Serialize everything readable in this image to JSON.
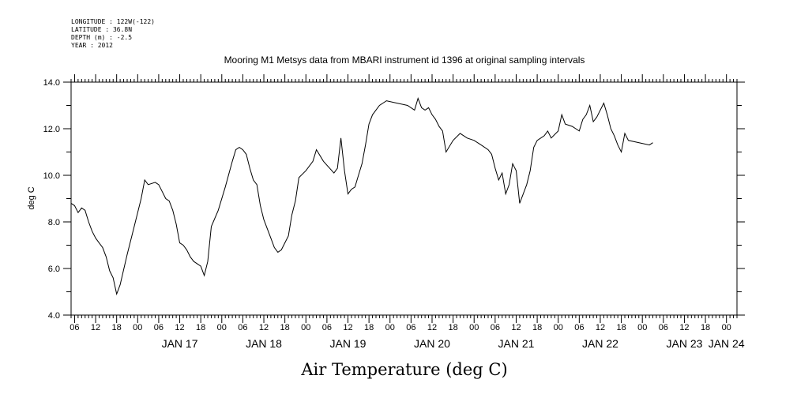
{
  "header": {
    "meta_lines": [
      "LONGITUDE : 122W(-122)",
      "LATITUDE : 36.8N",
      "DEPTH (m) : -2.5",
      "YEAR : 2012"
    ],
    "title": "Mooring M1 Metsys data from MBARI instrument id 1396 at original sampling intervals"
  },
  "footer": {
    "variable_title": "Air Temperature (deg C)"
  },
  "chart_data": {
    "type": "line",
    "title": "Mooring M1 Metsys data from MBARI instrument id 1396 at original sampling intervals",
    "xlabel": "Air Temperature (deg C)",
    "ylabel": "deg C",
    "xlim": [
      "2012-01-16T05:00",
      "2012-01-24T03:00"
    ],
    "ylim": [
      4.0,
      14.0
    ],
    "y_ticks": [
      "4.0",
      "6.0",
      "8.0",
      "10.0",
      "12.0",
      "14.0"
    ],
    "x_hour_ticks": [
      "06",
      "12",
      "18",
      "00",
      "06",
      "12",
      "18",
      "00",
      "06",
      "12",
      "18",
      "00",
      "06",
      "12",
      "18",
      "00",
      "06",
      "12",
      "18",
      "00",
      "06",
      "12",
      "18",
      "00",
      "06",
      "12",
      "18",
      "00",
      "06",
      "12",
      "18",
      "00"
    ],
    "x_date_labels": [
      "JAN 17",
      "JAN 18",
      "JAN 19",
      "JAN 20",
      "JAN 21",
      "JAN 22",
      "JAN 23",
      "JAN 24"
    ],
    "grid": false,
    "series": [
      {
        "color": "#000000",
        "points": [
          [
            "2012-01-16T05:00",
            8.8
          ],
          [
            "2012-01-16T06:00",
            8.7
          ],
          [
            "2012-01-16T07:00",
            8.4
          ],
          [
            "2012-01-16T08:00",
            8.6
          ],
          [
            "2012-01-16T09:00",
            8.5
          ],
          [
            "2012-01-16T10:00",
            8.0
          ],
          [
            "2012-01-16T11:00",
            7.6
          ],
          [
            "2012-01-16T12:00",
            7.3
          ],
          [
            "2012-01-16T13:00",
            7.1
          ],
          [
            "2012-01-16T14:00",
            6.9
          ],
          [
            "2012-01-16T15:00",
            6.5
          ],
          [
            "2012-01-16T16:00",
            5.9
          ],
          [
            "2012-01-16T17:00",
            5.6
          ],
          [
            "2012-01-16T18:00",
            4.9
          ],
          [
            "2012-01-16T19:00",
            5.3
          ],
          [
            "2012-01-16T21:00",
            6.6
          ],
          [
            "2012-01-16T23:00",
            7.8
          ],
          [
            "2012-01-17T01:00",
            9.0
          ],
          [
            "2012-01-17T02:00",
            9.8
          ],
          [
            "2012-01-17T03:00",
            9.6
          ],
          [
            "2012-01-17T05:00",
            9.7
          ],
          [
            "2012-01-17T06:00",
            9.6
          ],
          [
            "2012-01-17T07:00",
            9.3
          ],
          [
            "2012-01-17T08:00",
            9.0
          ],
          [
            "2012-01-17T09:00",
            8.9
          ],
          [
            "2012-01-17T10:00",
            8.5
          ],
          [
            "2012-01-17T11:00",
            7.9
          ],
          [
            "2012-01-17T12:00",
            7.1
          ],
          [
            "2012-01-17T13:00",
            7.0
          ],
          [
            "2012-01-17T14:00",
            6.8
          ],
          [
            "2012-01-17T15:00",
            6.5
          ],
          [
            "2012-01-17T16:00",
            6.3
          ],
          [
            "2012-01-17T18:00",
            6.1
          ],
          [
            "2012-01-17T19:00",
            5.7
          ],
          [
            "2012-01-17T20:00",
            6.3
          ],
          [
            "2012-01-17T21:00",
            7.8
          ],
          [
            "2012-01-17T23:00",
            8.5
          ],
          [
            "2012-01-18T01:00",
            9.5
          ],
          [
            "2012-01-18T03:00",
            10.6
          ],
          [
            "2012-01-18T04:00",
            11.1
          ],
          [
            "2012-01-18T05:00",
            11.2
          ],
          [
            "2012-01-18T06:00",
            11.1
          ],
          [
            "2012-01-18T07:00",
            10.9
          ],
          [
            "2012-01-18T08:00",
            10.3
          ],
          [
            "2012-01-18T09:00",
            9.8
          ],
          [
            "2012-01-18T10:00",
            9.6
          ],
          [
            "2012-01-18T11:00",
            8.7
          ],
          [
            "2012-01-18T12:00",
            8.1
          ],
          [
            "2012-01-18T14:00",
            7.3
          ],
          [
            "2012-01-18T15:00",
            6.9
          ],
          [
            "2012-01-18T16:00",
            6.7
          ],
          [
            "2012-01-18T17:00",
            6.8
          ],
          [
            "2012-01-18T18:00",
            7.1
          ],
          [
            "2012-01-18T19:00",
            7.4
          ],
          [
            "2012-01-18T20:00",
            8.3
          ],
          [
            "2012-01-18T21:00",
            8.9
          ],
          [
            "2012-01-18T22:00",
            9.9
          ],
          [
            "2012-01-19T00:00",
            10.2
          ],
          [
            "2012-01-19T02:00",
            10.6
          ],
          [
            "2012-01-19T03:00",
            11.1
          ],
          [
            "2012-01-19T05:00",
            10.6
          ],
          [
            "2012-01-19T08:00",
            10.1
          ],
          [
            "2012-01-19T09:00",
            10.3
          ],
          [
            "2012-01-19T10:00",
            11.6
          ],
          [
            "2012-01-19T11:00",
            10.2
          ],
          [
            "2012-01-19T12:00",
            9.2
          ],
          [
            "2012-01-19T13:00",
            9.4
          ],
          [
            "2012-01-19T14:00",
            9.5
          ],
          [
            "2012-01-19T15:00",
            10.0
          ],
          [
            "2012-01-19T16:00",
            10.5
          ],
          [
            "2012-01-19T17:00",
            11.3
          ],
          [
            "2012-01-19T18:00",
            12.2
          ],
          [
            "2012-01-19T19:00",
            12.6
          ],
          [
            "2012-01-19T21:00",
            13.0
          ],
          [
            "2012-01-19T23:00",
            13.2
          ],
          [
            "2012-01-20T02:00",
            13.1
          ],
          [
            "2012-01-20T05:00",
            13.0
          ],
          [
            "2012-01-20T07:00",
            12.8
          ],
          [
            "2012-01-20T08:00",
            13.3
          ],
          [
            "2012-01-20T09:00",
            12.9
          ],
          [
            "2012-01-20T10:00",
            12.8
          ],
          [
            "2012-01-20T11:00",
            12.9
          ],
          [
            "2012-01-20T12:00",
            12.6
          ],
          [
            "2012-01-20T13:00",
            12.4
          ],
          [
            "2012-01-20T14:00",
            12.1
          ],
          [
            "2012-01-20T15:00",
            11.9
          ],
          [
            "2012-01-20T16:00",
            11.0
          ],
          [
            "2012-01-20T18:00",
            11.5
          ],
          [
            "2012-01-20T20:00",
            11.8
          ],
          [
            "2012-01-20T22:00",
            11.6
          ],
          [
            "2012-01-21T00:00",
            11.5
          ],
          [
            "2012-01-21T02:00",
            11.3
          ],
          [
            "2012-01-21T04:00",
            11.1
          ],
          [
            "2012-01-21T05:00",
            10.9
          ],
          [
            "2012-01-21T06:00",
            10.3
          ],
          [
            "2012-01-21T07:00",
            9.8
          ],
          [
            "2012-01-21T08:00",
            10.1
          ],
          [
            "2012-01-21T09:00",
            9.2
          ],
          [
            "2012-01-21T10:00",
            9.6
          ],
          [
            "2012-01-21T11:00",
            10.5
          ],
          [
            "2012-01-21T12:00",
            10.2
          ],
          [
            "2012-01-21T13:00",
            8.8
          ],
          [
            "2012-01-21T14:00",
            9.2
          ],
          [
            "2012-01-21T15:00",
            9.6
          ],
          [
            "2012-01-21T16:00",
            10.2
          ],
          [
            "2012-01-21T17:00",
            11.2
          ],
          [
            "2012-01-21T18:00",
            11.5
          ],
          [
            "2012-01-21T20:00",
            11.7
          ],
          [
            "2012-01-21T21:00",
            11.9
          ],
          [
            "2012-01-21T22:00",
            11.6
          ],
          [
            "2012-01-22T00:00",
            11.9
          ],
          [
            "2012-01-22T01:00",
            12.6
          ],
          [
            "2012-01-22T02:00",
            12.2
          ],
          [
            "2012-01-22T04:00",
            12.1
          ],
          [
            "2012-01-22T06:00",
            11.9
          ],
          [
            "2012-01-22T07:00",
            12.4
          ],
          [
            "2012-01-22T08:00",
            12.6
          ],
          [
            "2012-01-22T09:00",
            13.0
          ],
          [
            "2012-01-22T10:00",
            12.3
          ],
          [
            "2012-01-22T11:00",
            12.5
          ],
          [
            "2012-01-22T13:00",
            13.1
          ],
          [
            "2012-01-22T14:00",
            12.6
          ],
          [
            "2012-01-22T15:00",
            12.0
          ],
          [
            "2012-01-22T16:00",
            11.7
          ],
          [
            "2012-01-22T17:00",
            11.3
          ],
          [
            "2012-01-22T18:00",
            11.0
          ],
          [
            "2012-01-22T19:00",
            11.8
          ],
          [
            "2012-01-22T20:00",
            11.5
          ],
          [
            "2012-01-23T02:00",
            11.3
          ],
          [
            "2012-01-23T03:00",
            11.4
          ]
        ]
      }
    ]
  }
}
